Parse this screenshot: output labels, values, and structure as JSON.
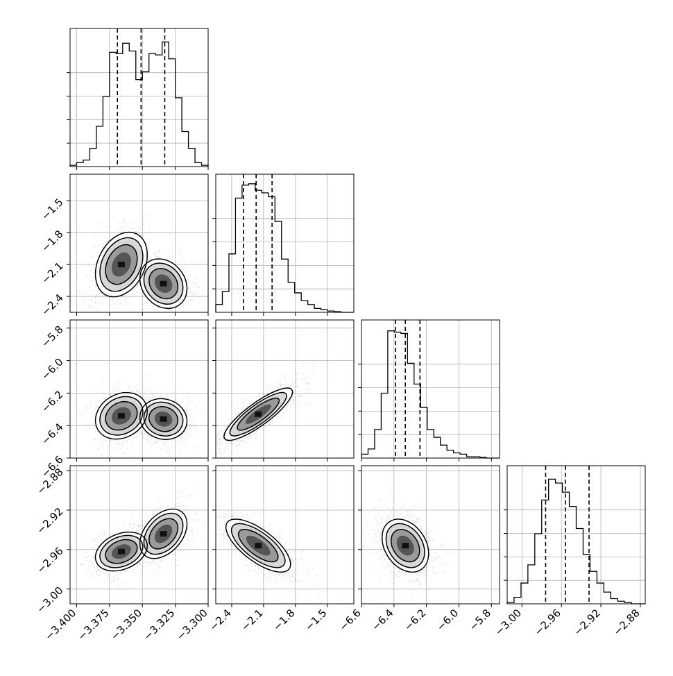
{
  "chart_data": {
    "type": "corner",
    "parameters": [
      "p0",
      "p1",
      "p2",
      "p3"
    ],
    "ranges": [
      [
        -3.405,
        -3.3
      ],
      [
        -2.55,
        -1.25
      ],
      [
        -6.6,
        -5.75
      ],
      [
        -3.015,
        -2.875
      ]
    ],
    "tick_labels": [
      [
        "−3.400",
        "−3.375",
        "−3.350",
        "−3.325",
        "−3.300"
      ],
      [
        "−2.4",
        "−2.1",
        "−1.8",
        "−1.5"
      ],
      [
        "−6.6",
        "−6.4",
        "−6.2",
        "−6.0",
        "−5.8"
      ],
      [
        "−3.00",
        "−2.96",
        "−2.92",
        "−2.88"
      ]
    ],
    "tick_values": [
      [
        -3.4,
        -3.375,
        -3.35,
        -3.325,
        -3.3
      ],
      [
        -2.4,
        -2.1,
        -1.8,
        -1.5
      ],
      [
        -6.6,
        -6.4,
        -6.2,
        -6.0,
        -5.8
      ],
      [
        -3.0,
        -2.96,
        -2.92,
        -2.88
      ]
    ],
    "quantiles": [
      [
        -3.369,
        -3.351,
        -3.333
      ],
      [
        -2.29,
        -2.17,
        -2.02
      ],
      [
        -6.39,
        -6.33,
        -6.24
      ],
      [
        -2.976,
        -2.956,
        -2.932
      ]
    ],
    "histograms": [
      [
        0.01,
        0.03,
        0.05,
        0.14,
        0.31,
        0.54,
        0.88,
        0.87,
        0.95,
        0.89,
        0.67,
        0.73,
        0.87,
        0.86,
        0.96,
        0.83,
        0.53,
        0.27,
        0.14,
        0.03,
        0.01
      ],
      [
        0.06,
        0.16,
        0.45,
        0.88,
        0.98,
        0.99,
        0.94,
        0.92,
        0.89,
        0.7,
        0.41,
        0.23,
        0.15,
        0.09,
        0.06,
        0.03,
        0.02,
        0.01,
        0.005,
        0,
        0
      ],
      [
        0.03,
        0.07,
        0.22,
        0.5,
        0.98,
        0.97,
        0.96,
        0.73,
        0.57,
        0.39,
        0.22,
        0.16,
        0.1,
        0.06,
        0.04,
        0.03,
        0.01,
        0.01,
        0.005,
        0,
        0
      ],
      [
        0.01,
        0.05,
        0.16,
        0.3,
        0.54,
        0.8,
        0.96,
        0.93,
        0.86,
        0.75,
        0.58,
        0.38,
        0.25,
        0.16,
        0.09,
        0.04,
        0.02,
        0.01,
        0,
        0
      ]
    ],
    "pairs": [
      {
        "x": 0,
        "y": 1,
        "modes": [
          [
            -3.366,
            -2.1,
            0.011,
            0.17,
            0.3
          ],
          [
            -3.334,
            -2.28,
            0.01,
            0.13,
            -0.2
          ]
        ]
      },
      {
        "x": 0,
        "y": 2,
        "modes": [
          [
            -3.366,
            -6.34,
            0.011,
            0.08,
            0.2
          ],
          [
            -3.334,
            -6.36,
            0.01,
            0.07,
            -0.1
          ]
        ]
      },
      {
        "x": 0,
        "y": 3,
        "modes": [
          [
            -3.366,
            -2.962,
            0.011,
            0.011,
            0.3
          ],
          [
            -3.334,
            -2.944,
            0.01,
            0.014,
            0.4
          ]
        ]
      },
      {
        "x": 1,
        "y": 2,
        "modes": [
          [
            -2.15,
            -6.33,
            0.18,
            0.09,
            0.85
          ]
        ]
      },
      {
        "x": 1,
        "y": 3,
        "modes": [
          [
            -2.15,
            -2.956,
            0.17,
            0.015,
            -0.7
          ]
        ]
      },
      {
        "x": 2,
        "y": 3,
        "modes": [
          [
            -6.33,
            -2.956,
            0.08,
            0.015,
            -0.3
          ]
        ]
      }
    ],
    "contour_levels": [
      0.39,
      0.86,
      1.0
    ],
    "grid": true,
    "legend": "none"
  }
}
